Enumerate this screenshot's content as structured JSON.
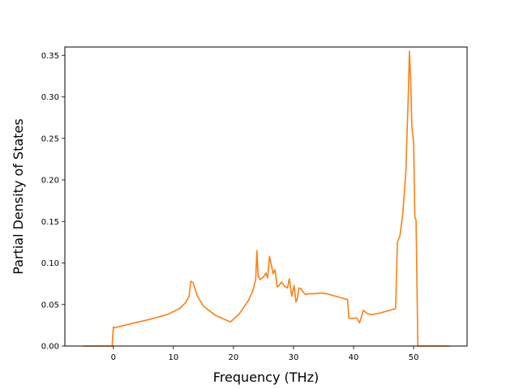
{
  "chart_data": {
    "type": "line",
    "title": "",
    "xlabel": "Frequency (THz)",
    "ylabel": "Partial Density of States",
    "xlim": [
      -8.07,
      58.9
    ],
    "ylim": [
      0,
      0.36
    ],
    "xticks": [
      0,
      10,
      20,
      30,
      40,
      50
    ],
    "xtick_labels": [
      "0",
      "10",
      "20",
      "30",
      "40",
      "50"
    ],
    "yticks": [
      0.0,
      0.05,
      0.1,
      0.15,
      0.2,
      0.25,
      0.3,
      0.35
    ],
    "ytick_labels": [
      "0.00",
      "0.05",
      "0.10",
      "0.15",
      "0.20",
      "0.25",
      "0.30",
      "0.35"
    ],
    "grid": false,
    "legend": "none",
    "colors": {
      "series_a": "#1f77b4",
      "series_b": "#ff7f0e"
    },
    "series": [
      {
        "color": "#ff7f0e",
        "x": [
          -5.0,
          -0.2,
          0.0,
          0.2,
          3,
          6,
          9,
          11,
          12,
          12.6,
          12.9,
          13.3,
          14,
          15,
          17,
          19.5,
          21,
          22.5,
          23.2,
          23.7,
          23.9,
          24.1,
          24.4,
          25,
          25.4,
          25.7,
          26.0,
          26.3,
          26.6,
          26.9,
          27.3,
          27.6,
          28.0,
          28.5,
          29.0,
          29.3,
          29.7,
          30.1,
          30.4,
          30.6,
          30.9,
          31.2,
          31.6,
          32.0,
          32.5,
          33.5,
          34.5,
          35.5,
          36.5,
          37.5,
          38.5,
          39.0,
          39.2,
          39.5,
          40.5,
          41.0,
          41.3,
          41.6,
          42.3,
          43,
          44,
          45,
          46,
          47.0,
          47.3,
          47.7,
          48.2,
          48.7,
          49.1,
          49.3,
          49.5,
          49.7,
          50.0,
          50.2,
          50.4,
          50.7,
          50.9,
          51.1,
          53,
          56.0
        ],
        "y": [
          0.0,
          0.0,
          0.023,
          0.022,
          0.027,
          0.032,
          0.038,
          0.045,
          0.052,
          0.06,
          0.078,
          0.076,
          0.06,
          0.048,
          0.037,
          0.029,
          0.039,
          0.055,
          0.066,
          0.08,
          0.115,
          0.085,
          0.08,
          0.083,
          0.088,
          0.082,
          0.108,
          0.098,
          0.087,
          0.092,
          0.071,
          0.073,
          0.077,
          0.072,
          0.07,
          0.081,
          0.06,
          0.073,
          0.053,
          0.056,
          0.07,
          0.069,
          0.065,
          0.062,
          0.063,
          0.063,
          0.064,
          0.063,
          0.061,
          0.059,
          0.057,
          0.056,
          0.034,
          0.033,
          0.034,
          0.028,
          0.035,
          0.043,
          0.039,
          0.038,
          0.039,
          0.041,
          0.043,
          0.045,
          0.125,
          0.132,
          0.16,
          0.21,
          0.3,
          0.355,
          0.32,
          0.265,
          0.245,
          0.155,
          0.152,
          0.0,
          0.0,
          0.0,
          0.0,
          0.0
        ]
      }
    ]
  }
}
